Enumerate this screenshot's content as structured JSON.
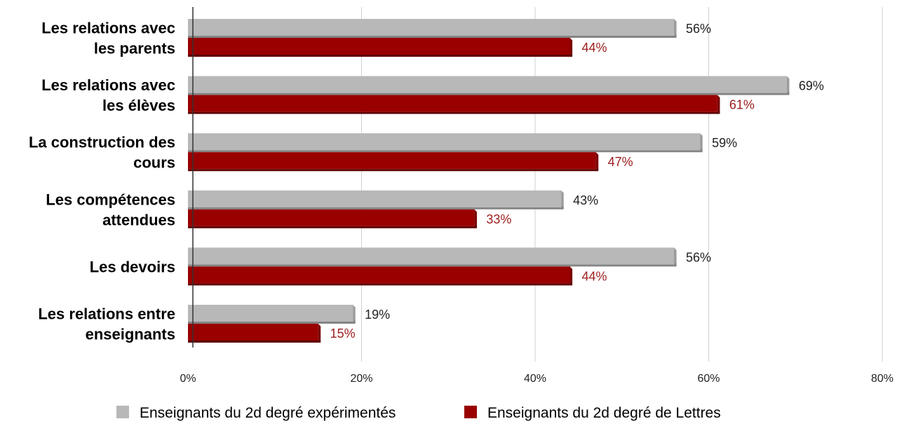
{
  "chart_data": {
    "type": "bar",
    "orientation": "horizontal",
    "categories": [
      [
        "Les relations avec",
        "les parents"
      ],
      [
        "Les relations avec",
        "les élèves"
      ],
      [
        "La construction des",
        "cours"
      ],
      [
        "Les compétences",
        "attendues"
      ],
      [
        "Les devoirs"
      ],
      [
        "Les relations entre",
        "enseignants"
      ]
    ],
    "series": [
      {
        "name": "Enseignants du 2d degré expérimentés",
        "color": "#b8b8b8",
        "label_color": "#222222",
        "values": [
          56,
          69,
          59,
          43,
          56,
          19
        ],
        "labels": [
          "56%",
          "69%",
          "59%",
          "43%",
          "56%",
          "19%"
        ]
      },
      {
        "name": "Enseignants du 2d degré de Lettres",
        "color": "#990000",
        "label_color": "#9b1c1c",
        "values": [
          44,
          61,
          47,
          33,
          44,
          15
        ],
        "labels": [
          "44%",
          "61%",
          "47%",
          "33%",
          "44%",
          "15%"
        ]
      }
    ],
    "xlim": [
      0,
      80
    ],
    "x_ticks": [
      0,
      20,
      40,
      60,
      80
    ],
    "x_tick_labels": [
      "0%",
      "20%",
      "40%",
      "60%",
      "80%"
    ],
    "grid": true,
    "legend_position": "bottom"
  }
}
